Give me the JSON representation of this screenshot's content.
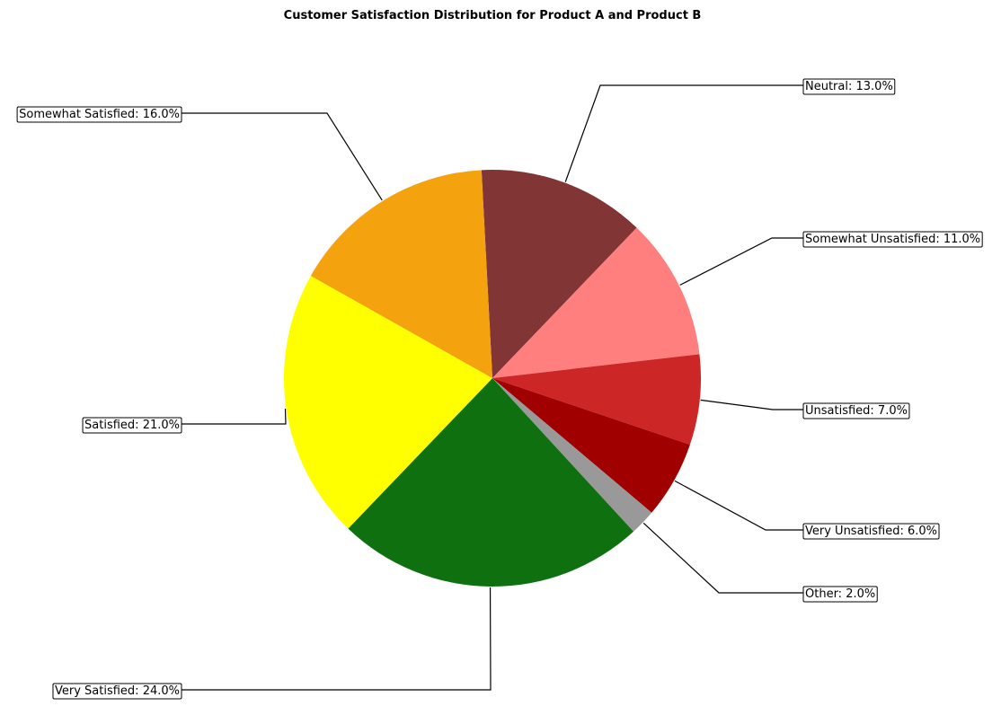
{
  "chart_data": {
    "type": "pie",
    "title": "Customer Satisfaction Distribution for Product A and Product B",
    "slices": [
      {
        "label": "Neutral",
        "value": 13.0,
        "color": "#823535"
      },
      {
        "label": "Somewhat Unsatisfied",
        "value": 11.0,
        "color": "#ff7f7f"
      },
      {
        "label": "Unsatisfied",
        "value": 7.0,
        "color": "#cd2626"
      },
      {
        "label": "Very Unsatisfied",
        "value": 6.0,
        "color": "#a00000"
      },
      {
        "label": "Other",
        "value": 2.0,
        "color": "#999999"
      },
      {
        "label": "Very Satisfied",
        "value": 24.0,
        "color": "#0f7010"
      },
      {
        "label": "Satisfied",
        "value": 21.0,
        "color": "#ffff00"
      },
      {
        "label": "Somewhat Satisfied",
        "value": 16.0,
        "color": "#f4a20d"
      }
    ],
    "label_texts": [
      "Neutral: 13.0%",
      "Somewhat Unsatisfied: 11.0%",
      "Unsatisfied: 7.0%",
      "Very Unsatisfied: 6.0%",
      "Other: 2.0%",
      "Very Satisfied: 24.0%",
      "Satisfied: 21.0%",
      "Somewhat Satisfied: 16.0%"
    ],
    "start_angle_deg": 93,
    "direction": "clockwise",
    "legend": "none"
  }
}
